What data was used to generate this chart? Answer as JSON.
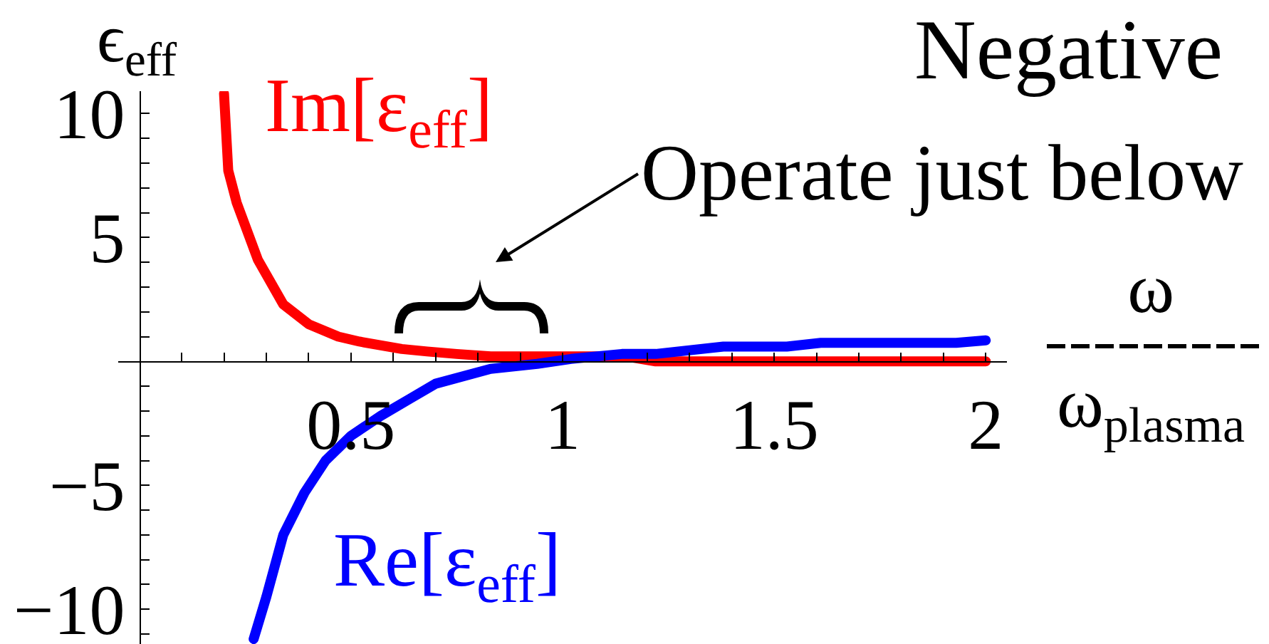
{
  "chart_data": {
    "type": "line",
    "title": "Negative",
    "xlabel": "ω\nω$_{plasma}$",
    "ylabel": "ϵ$_{eff}$",
    "xlim": [
      -0.05,
      2.05
    ],
    "ylim": [
      -11.4,
      10.9
    ],
    "xticks": [
      {
        "value": 0.1,
        "label": null
      },
      {
        "value": 0.2,
        "label": null
      },
      {
        "value": 0.3,
        "label": null
      },
      {
        "value": 0.4,
        "label": null
      },
      0.5,
      {
        "value": 0.6,
        "label": null
      },
      {
        "value": 0.7,
        "label": null
      },
      {
        "value": 0.8,
        "label": null
      },
      {
        "value": 0.9,
        "label": null
      },
      1,
      {
        "value": 1.1,
        "label": null
      },
      {
        "value": 1.2,
        "label": null
      },
      {
        "value": 1.3,
        "label": null
      },
      {
        "value": 1.4,
        "label": null
      },
      1.5,
      {
        "value": 1.6,
        "label": null
      },
      {
        "value": 1.7,
        "label": null
      },
      {
        "value": 1.8,
        "label": null
      },
      {
        "value": 1.9,
        "label": null
      },
      2
    ],
    "yticks": [
      {
        "value": -11,
        "label": null
      },
      {
        "value": -10,
        "label": "−10"
      },
      {
        "value": -9,
        "label": null
      },
      {
        "value": -8,
        "label": null
      },
      {
        "value": -7,
        "label": null
      },
      {
        "value": -6,
        "label": null
      },
      {
        "value": -5,
        "label": "−5"
      },
      {
        "value": -4,
        "label": null
      },
      {
        "value": -3,
        "label": null
      },
      {
        "value": -2,
        "label": null
      },
      {
        "value": -1,
        "label": null
      },
      {
        "value": 1,
        "label": null
      },
      {
        "value": 2,
        "label": null
      },
      {
        "value": 3,
        "label": null
      },
      {
        "value": 4,
        "label": null
      },
      5,
      {
        "value": 6,
        "label": null
      },
      {
        "value": 7,
        "label": null
      },
      {
        "value": 8,
        "label": null
      },
      {
        "value": 9,
        "label": null
      },
      10
    ],
    "series": [
      {
        "name": "Im[ε$_{eff}$]",
        "color": "#ff0000",
        "x": [
          0.2,
          0.21,
          0.23,
          0.28,
          0.34,
          0.4,
          0.47,
          0.52,
          0.62,
          0.68,
          0.75,
          0.83,
          0.9,
          1.0,
          1.15,
          1.22,
          1.5,
          2.0
        ],
        "values": [
          10.8,
          7.7,
          6.4,
          4.1,
          2.3,
          1.5,
          1.0,
          0.8,
          0.5,
          0.4,
          0.3,
          0.2,
          0.2,
          0.2,
          0.2,
          0.0,
          0.0,
          0.0
        ]
      },
      {
        "name": "Re[ε$_{eff}$]",
        "color": "#0000ff",
        "x": [
          0.27,
          0.3,
          0.34,
          0.39,
          0.44,
          0.5,
          0.57,
          0.64,
          0.7,
          0.83,
          0.94,
          1.02,
          1.14,
          1.22,
          1.38,
          1.53,
          1.61,
          1.93,
          2.0
        ],
        "values": [
          -11.2,
          -9.5,
          -7.0,
          -5.3,
          -4.0,
          -3.0,
          -2.2,
          -1.5,
          -0.9,
          -0.3,
          -0.1,
          0.1,
          0.3,
          0.3,
          0.6,
          0.6,
          0.75,
          0.75,
          0.85
        ]
      }
    ],
    "annotations": [
      "Operate just below"
    ],
    "grid": false,
    "legend": false
  }
}
